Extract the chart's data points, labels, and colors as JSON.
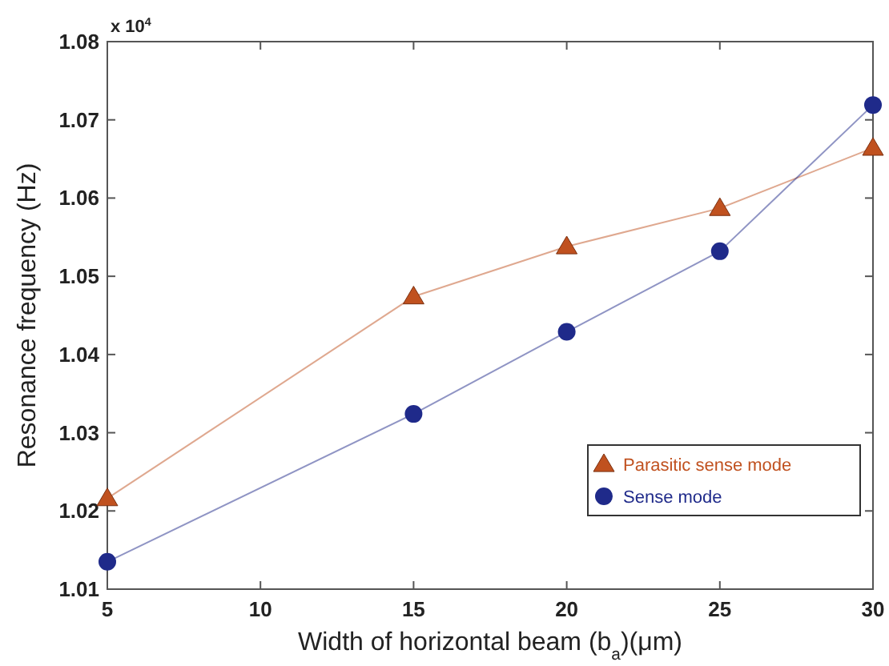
{
  "chart_data": {
    "type": "line",
    "xlabel": "Width of horizontal beam (b$_{a}$)(μm)",
    "ylabel": "Resonance frequency (Hz)",
    "annotations": [
      "x 10$^{4}$"
    ],
    "x": [
      5,
      15,
      20,
      25,
      30
    ],
    "series": [
      {
        "name": "Parasitic sense mode",
        "color": "#c0511f",
        "marker": "triangle",
        "values": [
          1.0216,
          1.0474,
          1.0538,
          1.0587,
          1.0664
        ]
      },
      {
        "name": "Sense mode",
        "color": "#1f2a8a",
        "marker": "circle",
        "values": [
          1.0135,
          1.0324,
          1.0429,
          1.0532,
          1.0719
        ]
      }
    ],
    "xlim": [
      5,
      30
    ],
    "xticks": [
      5,
      10,
      15,
      20,
      25,
      30
    ],
    "ylim": [
      1.01,
      1.08
    ],
    "yticks": [
      1.01,
      1.02,
      1.03,
      1.04,
      1.05,
      1.06,
      1.07,
      1.08
    ],
    "grid": false,
    "legend": "bottom right"
  }
}
